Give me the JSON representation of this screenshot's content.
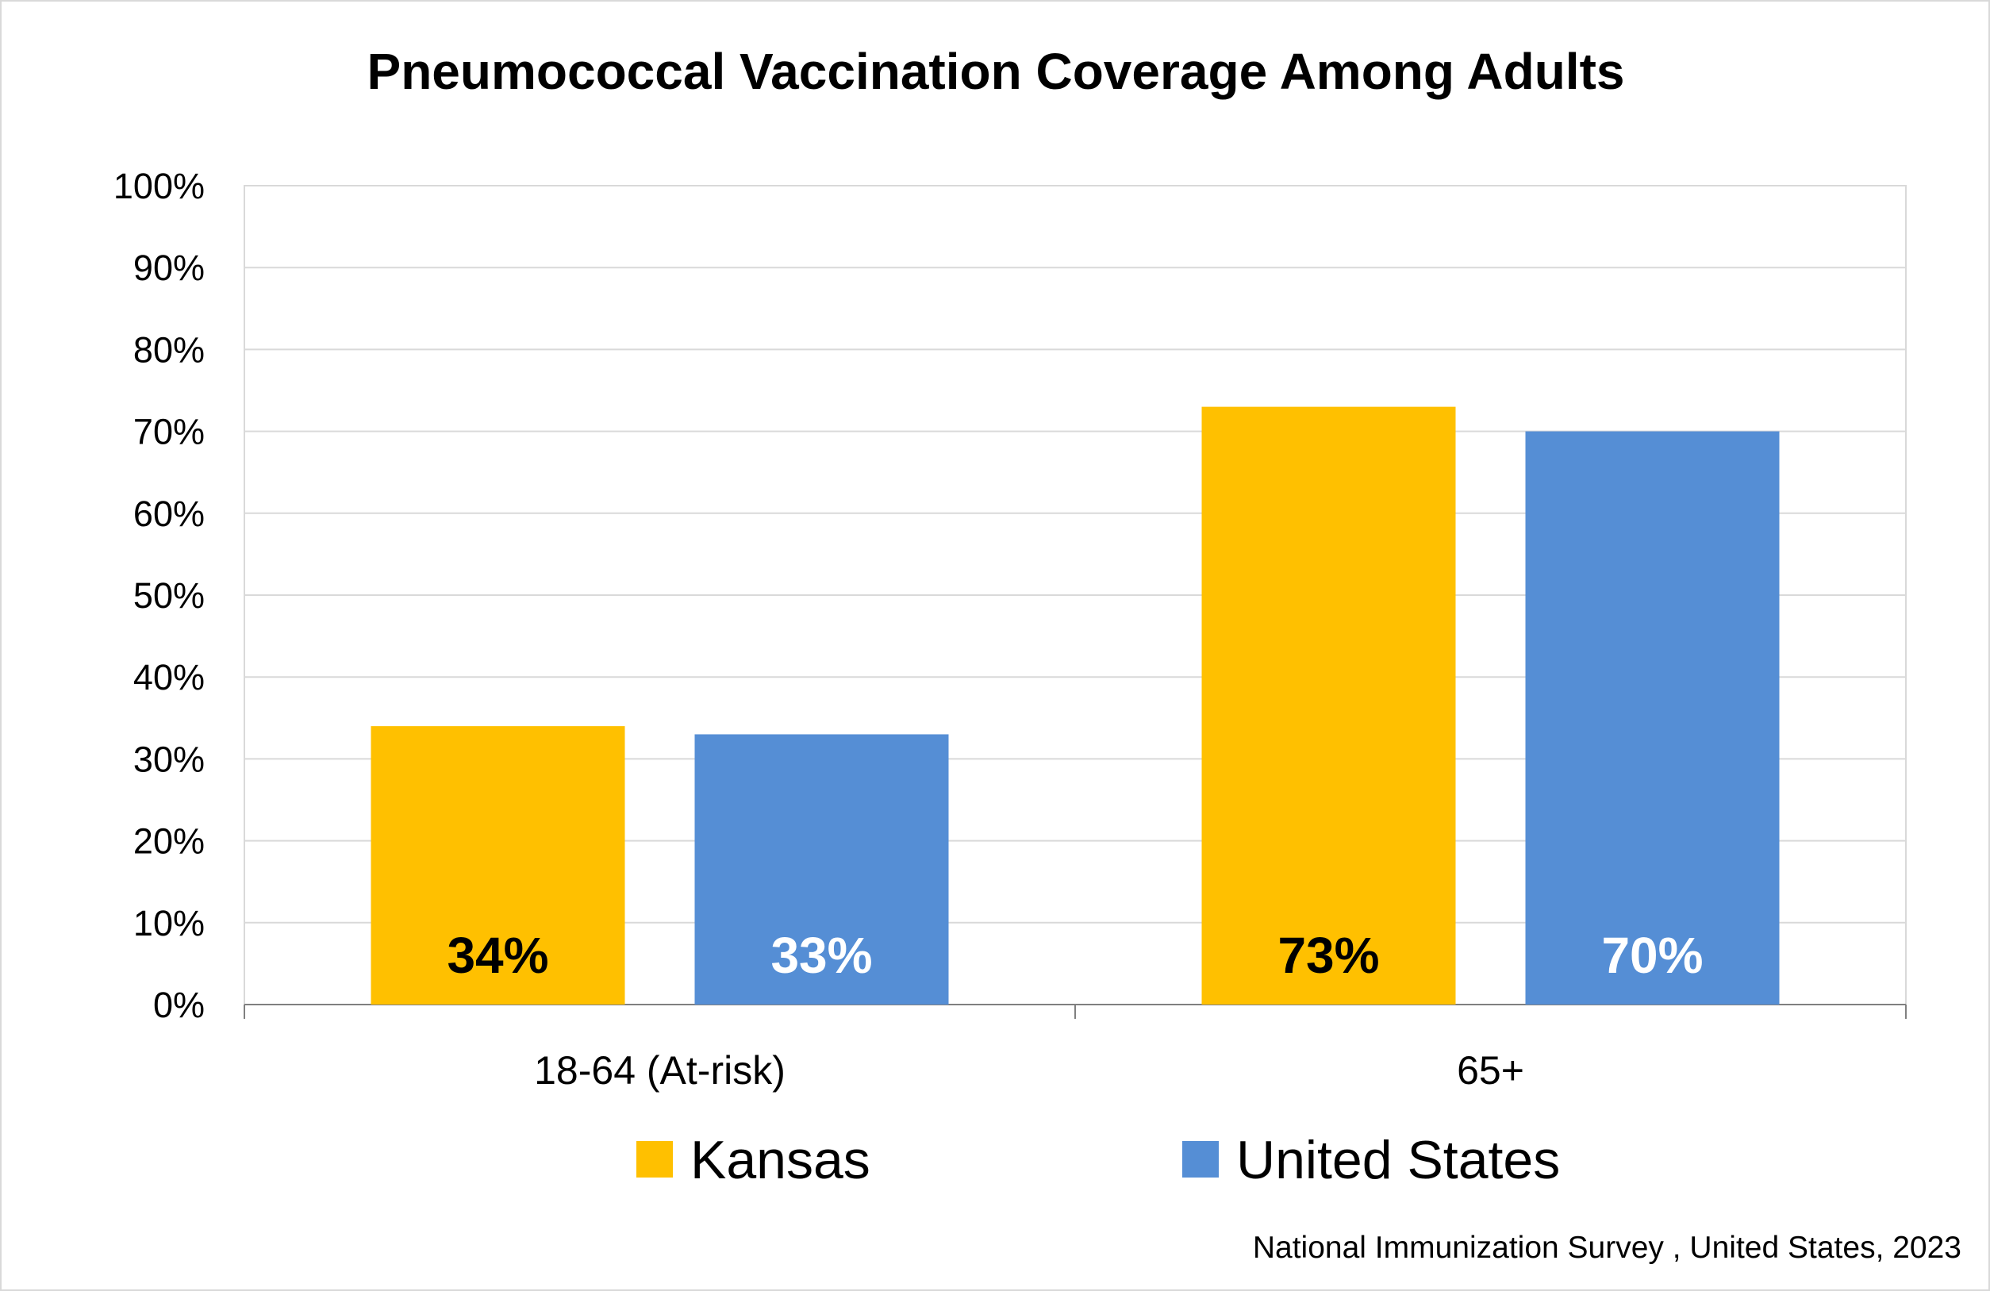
{
  "chart_data": {
    "type": "bar",
    "title": "Pneumococcal Vaccination Coverage Among Adults",
    "categories": [
      "18-64 (At-risk)",
      "65+"
    ],
    "series": [
      {
        "name": "Kansas",
        "values": [
          34,
          73
        ],
        "labels": [
          "34%",
          "73%"
        ],
        "color": "#FFC000",
        "label_color": "#000000"
      },
      {
        "name": "United States",
        "values": [
          33,
          70
        ],
        "labels": [
          "33%",
          "70%"
        ],
        "color": "#558ED5",
        "label_color": "#FFFFFF"
      }
    ],
    "ylim": [
      0,
      100
    ],
    "yticks": [
      "0%",
      "10%",
      "20%",
      "30%",
      "40%",
      "50%",
      "60%",
      "70%",
      "80%",
      "90%",
      "100%"
    ],
    "grid": true,
    "legend_position": "bottom",
    "source": "National Immunization Survey , United States, 2023"
  }
}
